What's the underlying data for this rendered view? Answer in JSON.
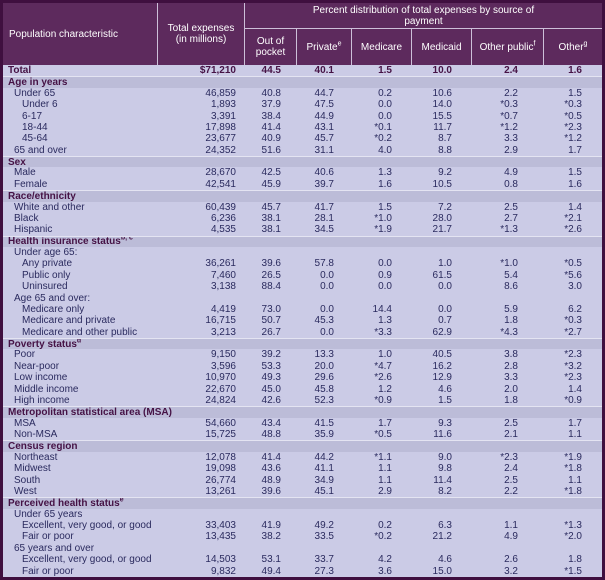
{
  "colors": {
    "header_bg": "#5d2a5d",
    "body_bg": "#cbcbe6",
    "section_bg": "#bcbcd8",
    "text": "#2a2a5e",
    "section_text": "#451245",
    "border": "#3f0f3f"
  },
  "table": {
    "header": {
      "population": "Population characteristic",
      "expenses": "Total expenses (in millions)",
      "span_title": "Percent distribution of total expenses by source of payment",
      "columns": [
        {
          "label": "Out of pocket",
          "sup": ""
        },
        {
          "label": "Private",
          "sup": "e"
        },
        {
          "label": "Medicare",
          "sup": ""
        },
        {
          "label": "Medicaid",
          "sup": ""
        },
        {
          "label": "Other public",
          "sup": "f"
        },
        {
          "label": "Other",
          "sup": "g"
        }
      ]
    },
    "rows": [
      {
        "type": "total",
        "indent": 0,
        "label": "Total",
        "values": [
          "$71,210",
          "44.5",
          "40.1",
          "1.5",
          "10.0",
          "2.4",
          "1.6"
        ]
      },
      {
        "type": "section",
        "indent": 0,
        "label": "Age in years",
        "sup": ""
      },
      {
        "type": "data",
        "indent": 1,
        "label": "Under 65",
        "values": [
          "46,859",
          "40.8",
          "44.7",
          "0.2",
          "10.6",
          "2.2",
          "1.5"
        ]
      },
      {
        "type": "data",
        "indent": 2,
        "label": "Under 6",
        "values": [
          "1,893",
          "37.9",
          "47.5",
          "0.0",
          "14.0",
          "*0.3",
          "*0.3"
        ]
      },
      {
        "type": "data",
        "indent": 2,
        "label": "6-17",
        "values": [
          "3,391",
          "38.4",
          "44.9",
          "0.0",
          "15.5",
          "*0.7",
          "*0.5"
        ]
      },
      {
        "type": "data",
        "indent": 2,
        "label": "18-44",
        "values": [
          "17,898",
          "41.4",
          "43.1",
          "*0.1",
          "11.7",
          "*1.2",
          "*2.3"
        ]
      },
      {
        "type": "data",
        "indent": 2,
        "label": "45-64",
        "values": [
          "23,677",
          "40.9",
          "45.7",
          "*0.2",
          "8.7",
          "3.3",
          "*1.2"
        ]
      },
      {
        "type": "data",
        "indent": 1,
        "label": "65 and over",
        "values": [
          "24,352",
          "51.6",
          "31.1",
          "4.0",
          "8.8",
          "2.9",
          "1.7"
        ]
      },
      {
        "type": "section",
        "indent": 0,
        "label": "Sex",
        "sup": ""
      },
      {
        "type": "data",
        "indent": 1,
        "label": "Male",
        "values": [
          "28,670",
          "42.5",
          "40.6",
          "1.3",
          "9.2",
          "4.9",
          "1.5"
        ]
      },
      {
        "type": "data",
        "indent": 1,
        "label": "Female",
        "values": [
          "42,541",
          "45.9",
          "39.7",
          "1.6",
          "10.5",
          "0.8",
          "1.6"
        ]
      },
      {
        "type": "section",
        "indent": 0,
        "label": "Race/ethnicity",
        "sup": ""
      },
      {
        "type": "data",
        "indent": 1,
        "label": "White and other",
        "values": [
          "60,439",
          "45.7",
          "41.7",
          "1.5",
          "7.2",
          "2.5",
          "1.4"
        ]
      },
      {
        "type": "data",
        "indent": 1,
        "label": "Black",
        "values": [
          "6,236",
          "38.1",
          "28.1",
          "*1.0",
          "28.0",
          "2.7",
          "*2.1"
        ]
      },
      {
        "type": "data",
        "indent": 1,
        "label": "Hispanic",
        "values": [
          "4,535",
          "38.1",
          "34.5",
          "*1.9",
          "21.7",
          "*1.3",
          "*2.6"
        ]
      },
      {
        "type": "section",
        "indent": 0,
        "label": "Health insurance status",
        "sup": "b, c"
      },
      {
        "type": "subheader",
        "indent": 1,
        "label": "Under age 65:"
      },
      {
        "type": "data",
        "indent": 2,
        "label": "Any private",
        "values": [
          "36,261",
          "39.6",
          "57.8",
          "0.0",
          "1.0",
          "*1.0",
          "*0.5"
        ]
      },
      {
        "type": "data",
        "indent": 2,
        "label": "Public only",
        "values": [
          "7,460",
          "26.5",
          "0.0",
          "0.9",
          "61.5",
          "5.4",
          "*5.6"
        ]
      },
      {
        "type": "data",
        "indent": 2,
        "label": "Uninsured",
        "values": [
          "3,138",
          "88.4",
          "0.0",
          "0.0",
          "0.0",
          "8.6",
          "3.0"
        ]
      },
      {
        "type": "subheader",
        "indent": 1,
        "label": "Age 65 and over:"
      },
      {
        "type": "data",
        "indent": 2,
        "label": "Medicare only",
        "values": [
          "4,419",
          "73.0",
          "0.0",
          "14.4",
          "0.0",
          "5.9",
          "6.2"
        ]
      },
      {
        "type": "data",
        "indent": 2,
        "label": "Medicare and private",
        "values": [
          "16,715",
          "50.7",
          "45.3",
          "1.3",
          "0.7",
          "1.8",
          "*0.3"
        ]
      },
      {
        "type": "data",
        "indent": 2,
        "label": "Medicare and other public",
        "values": [
          "3,213",
          "26.7",
          "0.0",
          "*3.3",
          "62.9",
          "*4.3",
          "*2.7"
        ]
      },
      {
        "type": "section",
        "indent": 0,
        "label": "Poverty status",
        "sup": "d"
      },
      {
        "type": "data",
        "indent": 1,
        "label": "Poor",
        "values": [
          "9,150",
          "39.2",
          "13.3",
          "1.0",
          "40.5",
          "3.8",
          "*2.3"
        ]
      },
      {
        "type": "data",
        "indent": 1,
        "label": "Near-poor",
        "values": [
          "3,596",
          "53.3",
          "20.0",
          "*4.7",
          "16.2",
          "2.8",
          "*3.2"
        ]
      },
      {
        "type": "data",
        "indent": 1,
        "label": "Low income",
        "values": [
          "10,970",
          "49.3",
          "29.6",
          "*2.6",
          "12.9",
          "3.3",
          "*2.3"
        ]
      },
      {
        "type": "data",
        "indent": 1,
        "label": "Middle income",
        "values": [
          "22,670",
          "45.0",
          "45.8",
          "1.2",
          "4.6",
          "2.0",
          "1.4"
        ]
      },
      {
        "type": "data",
        "indent": 1,
        "label": "High income",
        "values": [
          "24,824",
          "42.6",
          "52.3",
          "*0.9",
          "1.5",
          "1.8",
          "*0.9"
        ]
      },
      {
        "type": "section",
        "indent": 0,
        "label": "Metropolitan statistical area (MSA)",
        "sup": ""
      },
      {
        "type": "data",
        "indent": 1,
        "label": "MSA",
        "values": [
          "54,660",
          "43.4",
          "41.5",
          "1.7",
          "9.3",
          "2.5",
          "1.7"
        ]
      },
      {
        "type": "data",
        "indent": 1,
        "label": "Non-MSA",
        "values": [
          "15,725",
          "48.8",
          "35.9",
          "*0.5",
          "11.6",
          "2.1",
          "1.1"
        ]
      },
      {
        "type": "section",
        "indent": 0,
        "label": "Census region",
        "sup": ""
      },
      {
        "type": "data",
        "indent": 1,
        "label": "Northeast",
        "values": [
          "12,078",
          "41.4",
          "44.2",
          "*1.1",
          "9.0",
          "*2.3",
          "*1.9"
        ]
      },
      {
        "type": "data",
        "indent": 1,
        "label": "Midwest",
        "values": [
          "19,098",
          "43.6",
          "41.1",
          "1.1",
          "9.8",
          "2.4",
          "*1.8"
        ]
      },
      {
        "type": "data",
        "indent": 1,
        "label": "South",
        "values": [
          "26,774",
          "48.9",
          "34.9",
          "1.1",
          "11.4",
          "2.5",
          "1.1"
        ]
      },
      {
        "type": "data",
        "indent": 1,
        "label": "West",
        "values": [
          "13,261",
          "39.6",
          "45.1",
          "2.9",
          "8.2",
          "2.2",
          "*1.8"
        ]
      },
      {
        "type": "section",
        "indent": 0,
        "label": "Perceived health status",
        "sup": "e"
      },
      {
        "type": "subheader",
        "indent": 1,
        "label": "Under 65 years"
      },
      {
        "type": "data",
        "indent": 2,
        "label": "Excellent, very good, or good",
        "values": [
          "33,403",
          "41.9",
          "49.2",
          "0.2",
          "6.3",
          "1.1",
          "*1.3"
        ]
      },
      {
        "type": "data",
        "indent": 2,
        "label": "Fair or poor",
        "values": [
          "13,435",
          "38.2",
          "33.5",
          "*0.2",
          "21.2",
          "4.9",
          "*2.0"
        ]
      },
      {
        "type": "subheader",
        "indent": 1,
        "label": "65 years and over"
      },
      {
        "type": "data",
        "indent": 2,
        "label": "Excellent, very good, or good",
        "values": [
          "14,503",
          "53.1",
          "33.7",
          "4.2",
          "4.6",
          "2.6",
          "1.8"
        ]
      },
      {
        "type": "data",
        "indent": 2,
        "label": "Fair or poor",
        "values": [
          "9,832",
          "49.4",
          "27.3",
          "3.6",
          "15.0",
          "3.2",
          "*1.5"
        ]
      }
    ]
  }
}
